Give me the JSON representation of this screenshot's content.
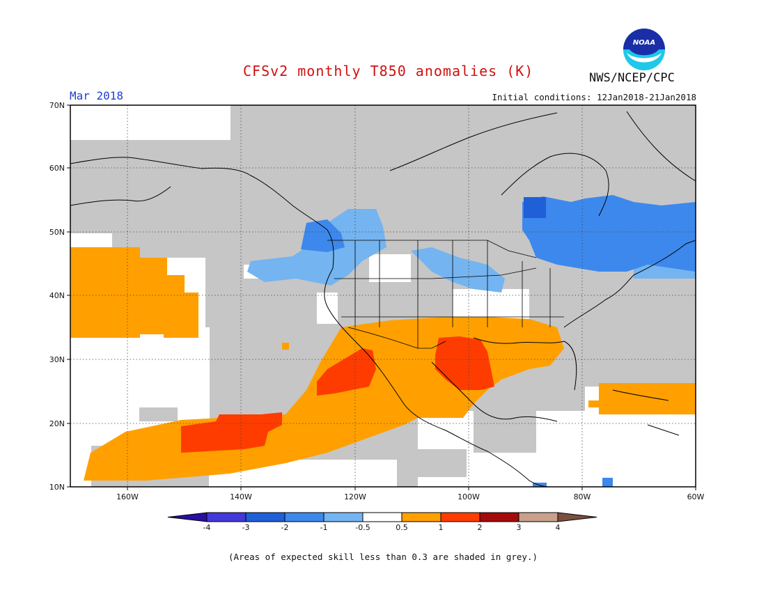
{
  "header": {
    "title": "CFSv2 monthly T850 anomalies (K)",
    "agency": "NWS/NCEP/CPC",
    "period": "Mar 2018",
    "initial_conditions": "Initial conditions: 12Jan2018-21Jan2018"
  },
  "logo": {
    "text": "NOAA",
    "icon": "noaa-logo"
  },
  "map": {
    "region": "North America",
    "lon_range": [
      -170,
      -60
    ],
    "lat_range": [
      10,
      70
    ],
    "lat_labels": [
      "10N",
      "20N",
      "30N",
      "40N",
      "50N",
      "60N",
      "70N"
    ],
    "lon_labels": [
      "160W",
      "140W",
      "120W",
      "100W",
      "80W",
      "60W"
    ],
    "grid": true
  },
  "legend": {
    "ticks": [
      "-4",
      "-3",
      "-2",
      "-1",
      "-0.5",
      "0.5",
      "1",
      "2",
      "3",
      "4"
    ],
    "colors": [
      "#2a0fa0",
      "#4438d8",
      "#1f5fd8",
      "#3d88ec",
      "#74b4f0",
      "#ffffff",
      "#ffa000",
      "#ff3c00",
      "#a50a0a",
      "#c8a08c",
      "#7a5040"
    ]
  },
  "footer": "(Areas of expected skill less than 0.3 are shaded in grey.)"
}
